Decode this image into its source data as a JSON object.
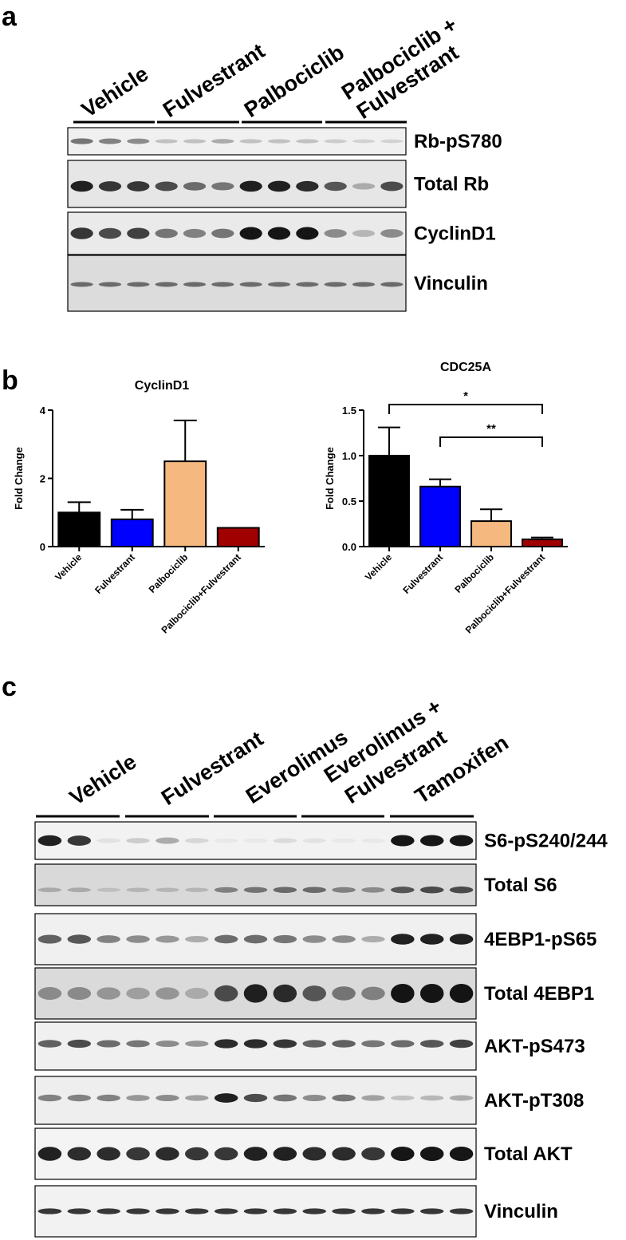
{
  "panel_letters": {
    "a": "a",
    "b": "b",
    "c": "c"
  },
  "panel_a": {
    "groups": [
      "Vehicle",
      "Fulvestrant",
      "Palbociclib",
      "Palbociclib +",
      "Fulvestrant"
    ],
    "blots": [
      {
        "label": "Rb-pS780",
        "lane_intensity": [
          0.55,
          0.5,
          0.45,
          0.2,
          0.2,
          0.3,
          0.2,
          0.2,
          0.2,
          0.15,
          0.12,
          0.12
        ]
      },
      {
        "label": "Total Rb",
        "lane_intensity": [
          0.95,
          0.85,
          0.85,
          0.75,
          0.6,
          0.55,
          0.95,
          0.95,
          0.9,
          0.7,
          0.3,
          0.75
        ]
      },
      {
        "label": "CyclinD1",
        "lane_intensity": [
          0.85,
          0.75,
          0.8,
          0.55,
          0.5,
          0.55,
          1.0,
          1.0,
          1.0,
          0.45,
          0.25,
          0.45
        ]
      },
      {
        "label": "Vinculin",
        "lane_intensity": [
          0.6,
          0.6,
          0.6,
          0.6,
          0.6,
          0.6,
          0.6,
          0.6,
          0.6,
          0.6,
          0.6,
          0.6
        ]
      }
    ]
  },
  "panel_b": {
    "chart_data": [
      {
        "type": "bar",
        "title": "CyclinD1",
        "ylabel": "Fold Change",
        "categories": [
          "Vehicle",
          "Fulvestrant",
          "Palbociclib",
          "Palbociclib+Fulvestrant"
        ],
        "values": [
          1.0,
          0.8,
          2.5,
          0.55
        ],
        "errors": [
          0.3,
          0.28,
          1.2,
          0.0
        ],
        "colors": [
          "#000000",
          "#0000ff",
          "#f5b87f",
          "#a00000"
        ],
        "ylim": [
          0,
          4
        ],
        "yticks": [
          "0",
          "2",
          "4"
        ]
      },
      {
        "type": "bar",
        "title": "CDC25A",
        "ylabel": "Fold Change",
        "categories": [
          "Vehicle",
          "Fulvestrant",
          "Palbociclib",
          "Palbociclib+Fulvestrant"
        ],
        "values": [
          1.0,
          0.66,
          0.28,
          0.08
        ],
        "errors": [
          0.31,
          0.08,
          0.13,
          0.02
        ],
        "colors": [
          "#000000",
          "#0000ff",
          "#f5b87f",
          "#a00000"
        ],
        "ylim": [
          0,
          1.5
        ],
        "yticks": [
          "0.0",
          "0.5",
          "1.0",
          "1.5"
        ],
        "significance": [
          {
            "from": 0,
            "to": 3,
            "label": "*"
          },
          {
            "from": 1,
            "to": 3,
            "label": "**"
          }
        ]
      }
    ]
  },
  "panel_c": {
    "groups": [
      "Vehicle",
      "Fulvestrant",
      "Everolimus",
      "Everolimus +",
      "Fulvestrant",
      "Tamoxifen"
    ],
    "blots": [
      {
        "label": "S6-pS240/244",
        "lane_intensity": [
          0.95,
          0.85,
          0.05,
          0.15,
          0.3,
          0.1,
          0.02,
          0.02,
          0.08,
          0.05,
          0.02,
          0.02,
          1.0,
          1.0,
          1.0
        ]
      },
      {
        "label": "Total S6",
        "lane_intensity": [
          0.3,
          0.3,
          0.2,
          0.25,
          0.25,
          0.25,
          0.5,
          0.55,
          0.6,
          0.6,
          0.5,
          0.45,
          0.7,
          0.75,
          0.75
        ]
      },
      {
        "label": "4EBP1-pS65",
        "lane_intensity": [
          0.65,
          0.7,
          0.5,
          0.45,
          0.4,
          0.3,
          0.6,
          0.6,
          0.55,
          0.45,
          0.45,
          0.3,
          0.95,
          0.95,
          0.95
        ]
      },
      {
        "label": "Total 4EBP1",
        "lane_intensity": [
          0.45,
          0.45,
          0.4,
          0.35,
          0.4,
          0.3,
          0.75,
          0.95,
          0.9,
          0.7,
          0.55,
          0.5,
          1.0,
          1.0,
          1.0
        ]
      },
      {
        "label": "AKT-pS473",
        "lane_intensity": [
          0.65,
          0.75,
          0.6,
          0.55,
          0.45,
          0.4,
          0.9,
          0.9,
          0.85,
          0.65,
          0.65,
          0.55,
          0.6,
          0.7,
          0.8
        ]
      },
      {
        "label": "AKT-pT308",
        "lane_intensity": [
          0.5,
          0.5,
          0.5,
          0.4,
          0.45,
          0.35,
          0.95,
          0.75,
          0.55,
          0.45,
          0.55,
          0.35,
          0.2,
          0.25,
          0.3
        ]
      },
      {
        "label": "Total AKT",
        "lane_intensity": [
          0.95,
          0.9,
          0.9,
          0.85,
          0.9,
          0.85,
          0.85,
          0.95,
          0.95,
          0.9,
          0.9,
          0.85,
          1.0,
          1.0,
          1.0
        ]
      },
      {
        "label": "Vinculin",
        "lane_intensity": [
          0.85,
          0.85,
          0.85,
          0.85,
          0.85,
          0.85,
          0.85,
          0.85,
          0.85,
          0.85,
          0.85,
          0.85,
          0.85,
          0.85,
          0.85
        ]
      }
    ]
  }
}
